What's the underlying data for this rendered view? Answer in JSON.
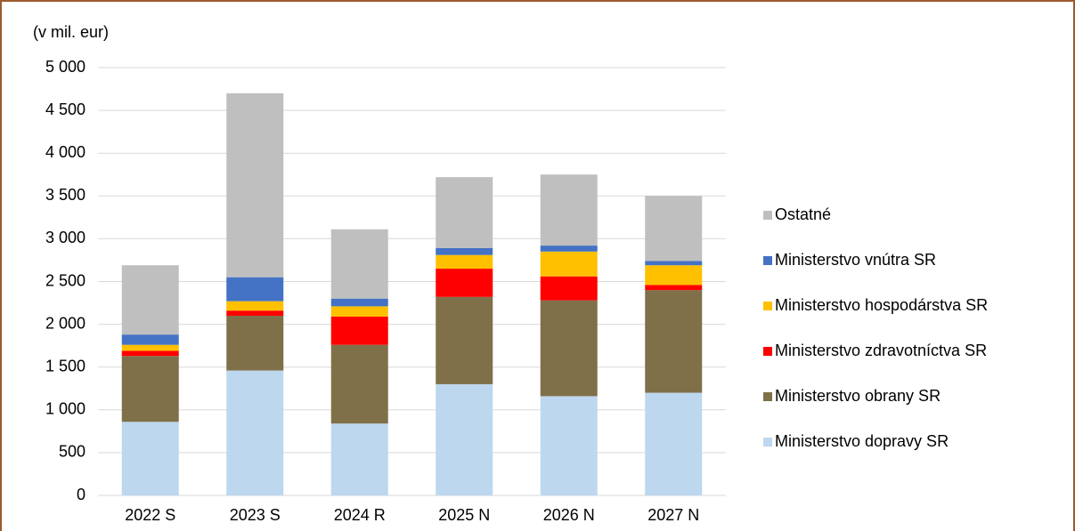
{
  "chart_data": {
    "type": "stacked_bar",
    "y_label": "(v mil. eur)",
    "categories": [
      "2022 S",
      "2023 S",
      "2024 R",
      "2025 N",
      "2026 N",
      "2027 N"
    ],
    "series": [
      {
        "name": "Ministerstvo dopravy SR",
        "color": "#bdd7ee",
        "values": [
          860,
          1460,
          840,
          1300,
          1160,
          1200
        ]
      },
      {
        "name": "Ministerstvo obrany SR",
        "color": "#7f7049",
        "values": [
          770,
          640,
          920,
          1020,
          1120,
          1200
        ]
      },
      {
        "name": "Ministerstvo zdravotníctva SR",
        "color": "#ff0000",
        "values": [
          60,
          60,
          330,
          330,
          280,
          60
        ]
      },
      {
        "name": "Ministerstvo hospodárstva SR",
        "color": "#ffc000",
        "values": [
          70,
          110,
          120,
          160,
          290,
          230
        ]
      },
      {
        "name": "Ministerstvo vnútra SR",
        "color": "#4472c4",
        "values": [
          120,
          280,
          90,
          80,
          70,
          50
        ]
      },
      {
        "name": "Ostatné",
        "color": "#bfbfbf",
        "values": [
          810,
          2150,
          810,
          830,
          830,
          760
        ]
      }
    ],
    "ylim": [
      0,
      5000
    ],
    "yticks": [
      0,
      500,
      {
        "value": 1000,
        "label": "1 000"
      },
      {
        "value": 1500,
        "label": "1 500"
      },
      {
        "value": 2000,
        "label": "2 000"
      },
      {
        "value": 2500,
        "label": "2 500"
      },
      {
        "value": 3000,
        "label": "3 000"
      },
      {
        "value": 3500,
        "label": "3 500"
      },
      {
        "value": 4000,
        "label": "4 000"
      },
      {
        "value": 4500,
        "label": "4 500"
      },
      {
        "value": 5000,
        "label": "5 000"
      }
    ],
    "grid": true,
    "legend": "right"
  }
}
